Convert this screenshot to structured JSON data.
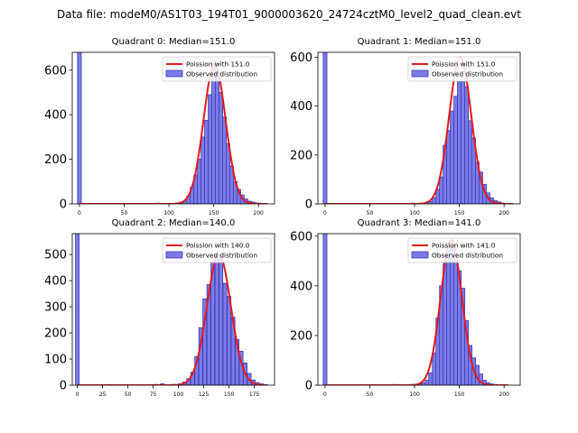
{
  "figure": {
    "suptitle": "Data file: modeM0/AS1T03_194T01_9000003620_24724cztM0_level2_quad_clean.evt",
    "colors": {
      "bar_fill": "#7b7bea",
      "bar_edge": "#3a3ab0",
      "curve": "#e41a1c"
    }
  },
  "chart_data": [
    {
      "type": "bar",
      "title": "Quadrant 0: Median=151.0",
      "legend": [
        "Poission with 151.0",
        "Observed distribution"
      ],
      "legend_position": "upper-right",
      "xlim": [
        -8,
        218
      ],
      "ylim": [
        0,
        680
      ],
      "xticks": [
        0,
        50,
        100,
        150,
        200
      ],
      "yticks": [
        0,
        200,
        400,
        600
      ],
      "bin_width": 4.2,
      "bar_x": [
        0,
        88,
        110,
        114,
        118,
        122,
        126,
        130,
        134,
        138,
        142,
        146,
        150,
        154,
        158,
        162,
        166,
        170,
        174,
        178,
        182,
        186,
        190,
        194,
        198,
        202,
        206
      ],
      "bar_values": [
        680,
        3,
        3,
        8,
        12,
        35,
        75,
        130,
        200,
        300,
        375,
        490,
        640,
        590,
        500,
        390,
        270,
        170,
        100,
        65,
        40,
        22,
        12,
        8,
        4,
        3,
        1
      ],
      "poisson_mean": 151.0,
      "poisson_amplitude": 625,
      "curve_range": [
        0,
        210
      ]
    },
    {
      "type": "bar",
      "title": "Quadrant 1: Median=151.0",
      "legend": [
        "Poission with 151.0",
        "Observed distribution"
      ],
      "legend_position": "upper-right",
      "xlim": [
        -8,
        218
      ],
      "ylim": [
        0,
        620
      ],
      "xticks": [
        0,
        50,
        100,
        150,
        200
      ],
      "yticks": [
        0,
        200,
        400,
        600
      ],
      "bin_width": 4.2,
      "bar_x": [
        0,
        98,
        110,
        114,
        118,
        122,
        126,
        130,
        134,
        138,
        142,
        146,
        150,
        154,
        158,
        162,
        166,
        170,
        174,
        178,
        182,
        186,
        190,
        194,
        198,
        202,
        206
      ],
      "bar_values": [
        620,
        3,
        3,
        6,
        10,
        25,
        60,
        110,
        240,
        300,
        380,
        440,
        500,
        500,
        480,
        340,
        270,
        170,
        130,
        80,
        45,
        25,
        14,
        8,
        4,
        2,
        1
      ],
      "poisson_mean": 151.0,
      "poisson_amplitude": 600,
      "curve_range": [
        0,
        210
      ]
    },
    {
      "type": "bar",
      "title": "Quadrant 2: Median=140.0",
      "legend": [
        "Poission with 140.0",
        "Observed distribution"
      ],
      "legend_position": "upper-right",
      "xlim": [
        -5,
        195
      ],
      "ylim": [
        0,
        580
      ],
      "xticks": [
        0,
        25,
        50,
        75,
        100,
        125,
        150,
        175
      ],
      "yticks": [
        0,
        100,
        200,
        300,
        400,
        500
      ],
      "bin_width": 3.7,
      "bar_x": [
        0,
        78,
        84,
        95,
        102,
        106,
        110,
        114,
        118,
        122,
        126,
        130,
        134,
        138,
        142,
        146,
        150,
        154,
        158,
        162,
        166,
        170,
        174,
        178,
        182,
        186
      ],
      "bar_values": [
        580,
        3,
        5,
        3,
        6,
        12,
        25,
        50,
        110,
        220,
        330,
        385,
        470,
        500,
        490,
        390,
        340,
        260,
        175,
        130,
        85,
        45,
        20,
        10,
        5,
        2
      ],
      "poisson_mean": 140.0,
      "poisson_amplitude": 500,
      "curve_range": [
        0,
        185
      ]
    },
    {
      "type": "bar",
      "title": "Quadrant 3: Median=141.0",
      "legend": [
        "Poission with 141.0",
        "Observed distribution"
      ],
      "legend_position": "upper-right",
      "xlim": [
        -8,
        218
      ],
      "ylim": [
        0,
        610
      ],
      "xticks": [
        0,
        50,
        100,
        150,
        200
      ],
      "yticks": [
        0,
        200,
        400,
        600
      ],
      "bin_width": 4.2,
      "bar_x": [
        0,
        78,
        98,
        106,
        110,
        114,
        118,
        122,
        126,
        130,
        134,
        138,
        142,
        146,
        150,
        154,
        158,
        162,
        166,
        170,
        174,
        178,
        182,
        186,
        190,
        194
      ],
      "bar_values": [
        610,
        3,
        3,
        5,
        10,
        20,
        50,
        130,
        270,
        400,
        490,
        540,
        560,
        510,
        460,
        390,
        260,
        160,
        110,
        80,
        45,
        20,
        10,
        5,
        3,
        1
      ],
      "poisson_mean": 141.0,
      "poisson_amplitude": 585,
      "curve_range": [
        0,
        205
      ]
    }
  ]
}
